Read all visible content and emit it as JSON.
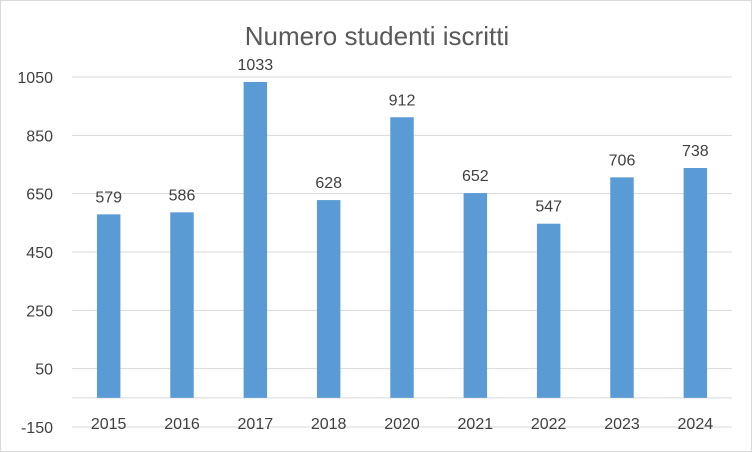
{
  "chart_data": {
    "type": "bar",
    "title": "Numero studenti iscritti",
    "xlabel": "",
    "ylabel": "",
    "categories": [
      "2015",
      "2016",
      "2017",
      "2018",
      "2020",
      "2021",
      "2022",
      "2023",
      "2024"
    ],
    "values": [
      579,
      586,
      1033,
      628,
      912,
      652,
      547,
      706,
      738
    ],
    "ylim": [
      -150,
      1050
    ],
    "yticks": [
      -150,
      50,
      250,
      450,
      650,
      850,
      1050
    ],
    "ytick_labels": [
      "-150",
      "50",
      "250",
      "450",
      "650",
      "850",
      "1050"
    ],
    "bar_base": -50,
    "grid": true,
    "legend": "none",
    "bar_color": "#5b9bd5",
    "grid_color": "#d9d9d9"
  }
}
